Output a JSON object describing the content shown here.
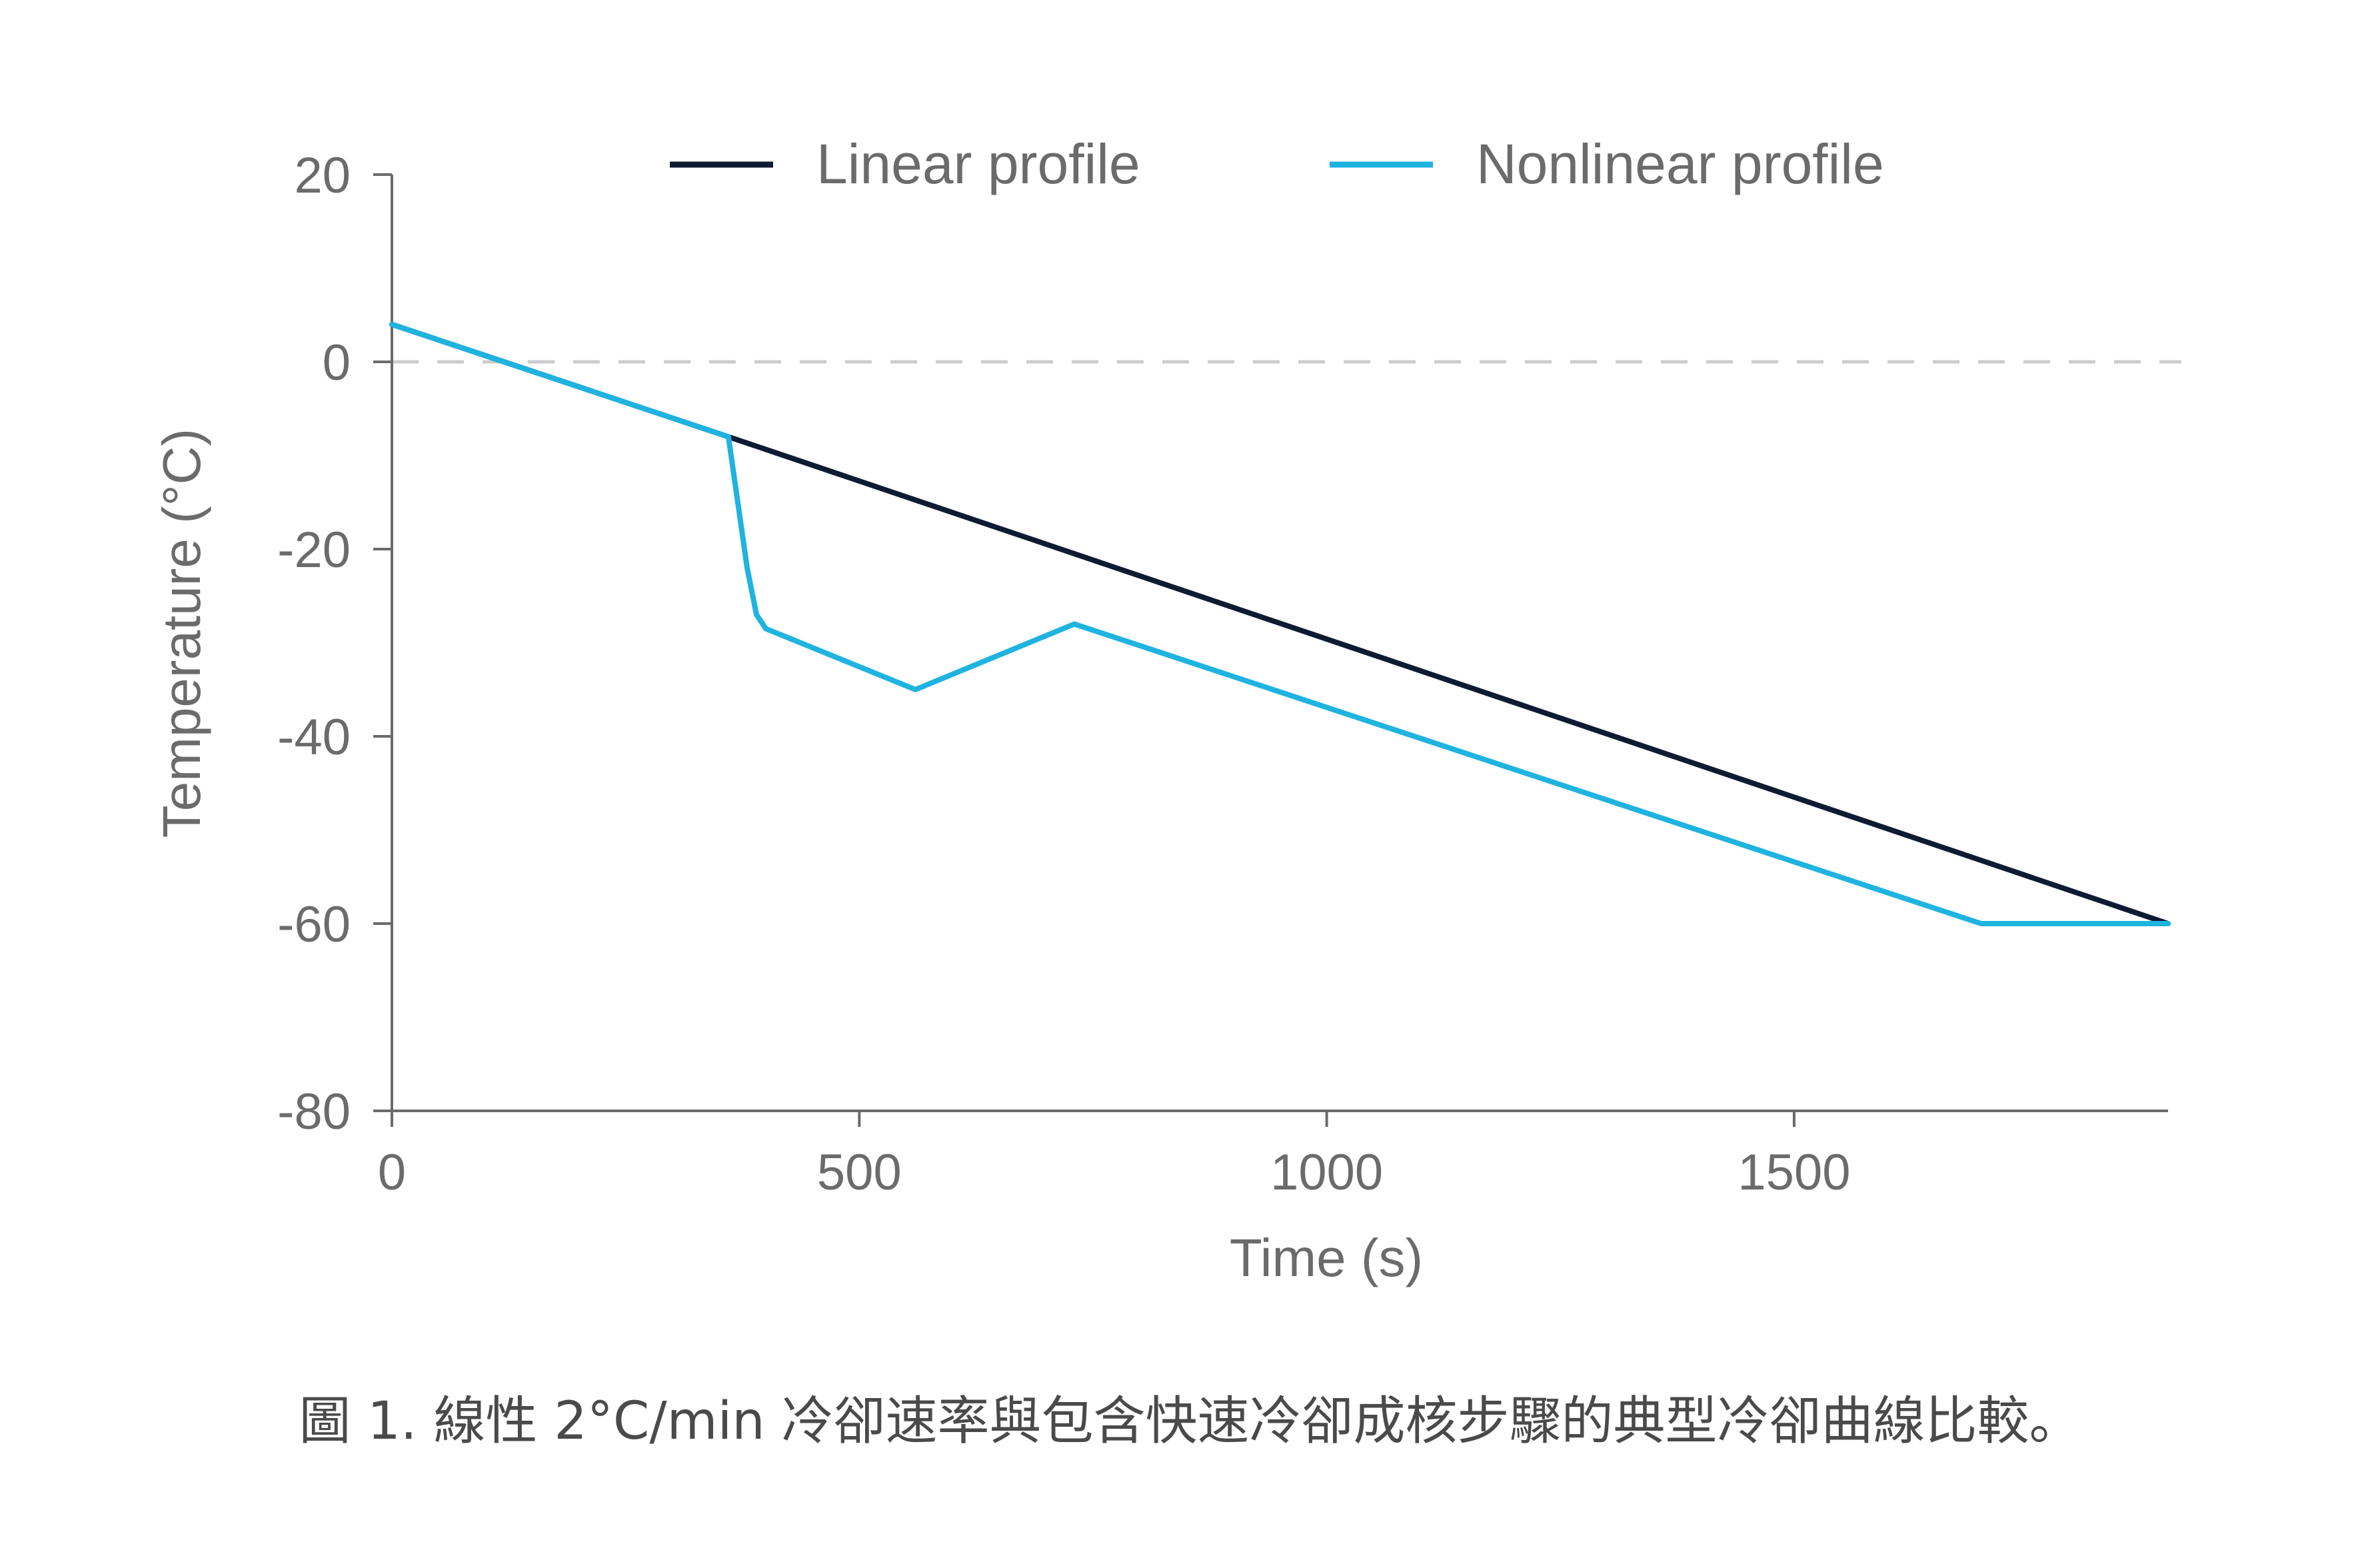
{
  "chart_data": {
    "type": "line",
    "xlabel": "Time (s)",
    "ylabel": "Temperature (°C)",
    "xlim": [
      0,
      1900
    ],
    "ylim": [
      -80,
      20
    ],
    "x_ticks": [
      0,
      500,
      1000,
      1500
    ],
    "y_ticks": [
      20,
      0,
      -20,
      -40,
      -60,
      -80
    ],
    "reference_line": {
      "y": 0,
      "style": "dashed",
      "color": "#cccccc"
    },
    "grid": false,
    "legend_position": "top",
    "series": [
      {
        "name": "Linear profile",
        "color": "#0d1b33",
        "points": [
          [
            0,
            4
          ],
          [
            360,
            -8
          ],
          [
            1900,
            -60
          ]
        ]
      },
      {
        "name": "Nonlinear profile",
        "color": "#1fb3e0",
        "points": [
          [
            0,
            4
          ],
          [
            360,
            -8
          ],
          [
            370,
            -15
          ],
          [
            380,
            -22
          ],
          [
            390,
            -27
          ],
          [
            400,
            -28.5
          ],
          [
            560,
            -35
          ],
          [
            730,
            -28
          ],
          [
            1700,
            -60
          ],
          [
            1900,
            -60
          ]
        ]
      }
    ]
  },
  "caption": "圖 1. 線性 2°C/min 冷卻速率與包含快速冷卻成核步驟的典型冷卻曲線比較。"
}
